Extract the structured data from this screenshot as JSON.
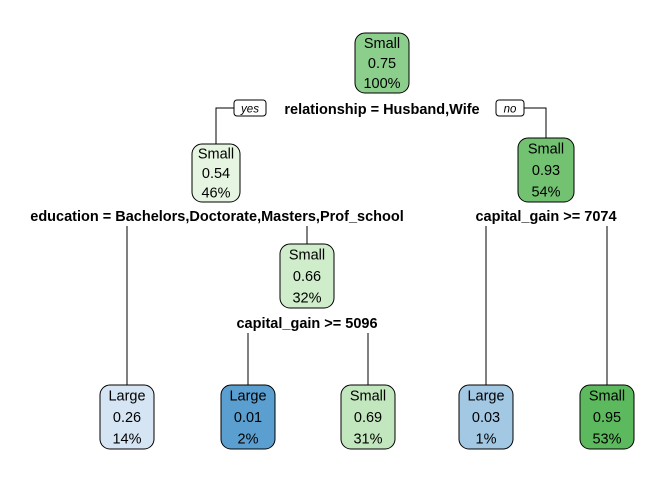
{
  "tree": {
    "branch_labels": {
      "yes": "yes",
      "no": "no"
    },
    "nodes": [
      {
        "id": "root",
        "class": "Small",
        "prob": "0.75",
        "pct": "100%",
        "color": "#8cce8c"
      },
      {
        "id": "n2",
        "class": "Small",
        "prob": "0.54",
        "pct": "46%",
        "color": "#e6f5e1"
      },
      {
        "id": "n3",
        "class": "Small",
        "prob": "0.93",
        "pct": "54%",
        "color": "#72c272"
      },
      {
        "id": "n5",
        "class": "Small",
        "prob": "0.66",
        "pct": "32%",
        "color": "#cfeccb"
      },
      {
        "id": "leaf4",
        "class": "Large",
        "prob": "0.26",
        "pct": "14%",
        "color": "#d6e5f4"
      },
      {
        "id": "leaf10",
        "class": "Large",
        "prob": "0.01",
        "pct": "2%",
        "color": "#5a9fd0"
      },
      {
        "id": "leaf11",
        "class": "Small",
        "prob": "0.69",
        "pct": "31%",
        "color": "#c2e6bd"
      },
      {
        "id": "leaf6",
        "class": "Large",
        "prob": "0.03",
        "pct": "1%",
        "color": "#a3c8e4"
      },
      {
        "id": "leaf7",
        "class": "Small",
        "prob": "0.95",
        "pct": "53%",
        "color": "#5db95d"
      }
    ],
    "splits": [
      {
        "id": "split-root",
        "text": "relationship = Husband,Wife"
      },
      {
        "id": "split-n2",
        "text": "education = Bachelors,Doctorate,Masters,Prof_school"
      },
      {
        "id": "split-n3",
        "text": "capital_gain >= 7074"
      },
      {
        "id": "split-n5",
        "text": "capital_gain >= 5096"
      }
    ]
  }
}
